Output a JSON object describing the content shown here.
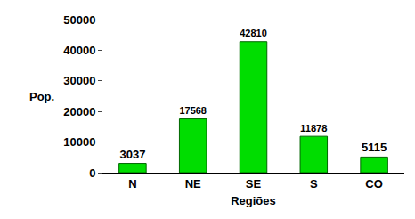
{
  "chart_data": {
    "type": "bar",
    "categories": [
      "N",
      "NE",
      "SE",
      "S",
      "CO"
    ],
    "values": [
      3037,
      17568,
      42810,
      11878,
      5115
    ],
    "color": "#00dd00",
    "xlabel": "Regiões",
    "ylabel": "Pop.",
    "ylim": [
      0,
      50000
    ],
    "yticks": [
      0,
      10000,
      20000,
      30000,
      40000,
      50000
    ],
    "data_labels": true,
    "grid": false
  }
}
